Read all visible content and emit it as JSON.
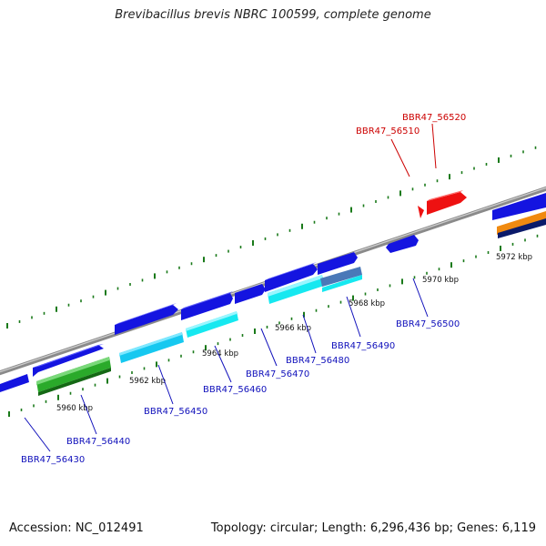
{
  "title": "Brevibacillus brevis NBRC 100599, complete genome",
  "footer": {
    "accession": "Accession: NC_012491",
    "stats": "Topology: circular; Length: 6,296,436 bp; Genes: 6,119"
  },
  "colors": {
    "forward_gene": "#1010dd",
    "reverse_gene": "#1a1ad0",
    "highlight_gene": "#ee1111",
    "cyan_gene": "#16e8f0",
    "green_gene": "#2aa52a",
    "orange_gene": "#f08a10",
    "navy_gene": "#0a1a6a",
    "tick": "#1a7a1a",
    "label_blue": "#1010bb",
    "label_red": "#cc0000",
    "backbone": "#888888"
  },
  "scale_labels": [
    "5960 kbp",
    "5962 kbp",
    "5964 kbp",
    "5966 kbp",
    "5968 kbp",
    "5970 kbp",
    "5972 kbp"
  ],
  "gene_labels": [
    {
      "text": "BBR47_56430",
      "color": "blue"
    },
    {
      "text": "BBR47_56440",
      "color": "blue"
    },
    {
      "text": "BBR47_56450",
      "color": "blue"
    },
    {
      "text": "BBR47_56460",
      "color": "blue"
    },
    {
      "text": "BBR47_56470",
      "color": "blue"
    },
    {
      "text": "BBR47_56480",
      "color": "blue"
    },
    {
      "text": "BBR47_56490",
      "color": "blue"
    },
    {
      "text": "BBR47_56500",
      "color": "blue"
    },
    {
      "text": "BBR47_56510",
      "color": "red"
    },
    {
      "text": "BBR47_56520",
      "color": "red"
    }
  ]
}
